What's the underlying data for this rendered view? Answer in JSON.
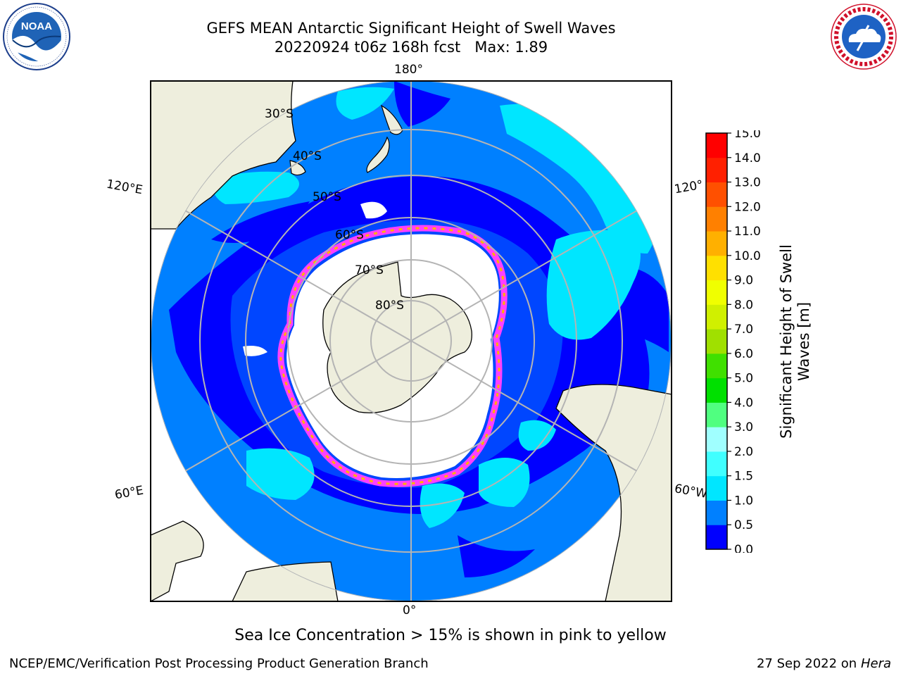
{
  "header": {
    "title_line1": "GEFS MEAN Antarctic Significant Height of Swell Waves",
    "title_line2": "20220924 t06z 168h fcst   Max: 1.89"
  },
  "logos": {
    "left": {
      "icon": "noaa-logo-icon",
      "text": "NOAA"
    },
    "right": {
      "icon": "nws-logo-icon",
      "text": "NATIONAL WEATHER SERVICE"
    }
  },
  "map": {
    "projection": "south-polar-stereographic",
    "meridian_labels": {
      "top": "180°",
      "bottom": "0°",
      "left_upper": "120°E",
      "left_lower": "60°E",
      "right_upper": "120°",
      "right_lower": "60°W"
    },
    "latitude_labels": [
      "30°S",
      "40°S",
      "50°S",
      "60°S",
      "70°S",
      "80°S"
    ],
    "colors": {
      "land": "#eeeedd",
      "ocean_base": "#0080ff",
      "ocean_calm": "#0000ff",
      "ocean_swell": "#00e6ff",
      "ocean_swell_light": "#40ffff",
      "ice_edge_pink": "#ff40ff",
      "ice_edge_orange": "#ffb000",
      "sea_ice": "#ffffff",
      "graticule": "#b4b4b4"
    }
  },
  "colorbar": {
    "title_line1": "Significant Height of Swell",
    "title_line2": "Waves [m]",
    "ticks": [
      "0.0",
      "0.5",
      "1.0",
      "1.5",
      "2.0",
      "3.0",
      "4.0",
      "5.0",
      "6.0",
      "7.0",
      "8.0",
      "9.0",
      "10.0",
      "11.0",
      "12.0",
      "13.0",
      "14.0",
      "15.0"
    ],
    "colors": [
      "#0000ff",
      "#0080ff",
      "#00e6ff",
      "#40ffff",
      "#a0ffff",
      "#50ff80",
      "#00e000",
      "#40e000",
      "#a0e000",
      "#d0f000",
      "#f0ff00",
      "#ffe000",
      "#ffb000",
      "#ff8000",
      "#ff5000",
      "#ff2000",
      "#ff0000"
    ]
  },
  "footer": {
    "note": "Sea Ice Concentration > 15% is shown in pink to yellow",
    "credit": "NCEP/EMC/Verification Post Processing Product Generation Branch",
    "date": "27 Sep 2022 on",
    "machine": "Hera"
  }
}
